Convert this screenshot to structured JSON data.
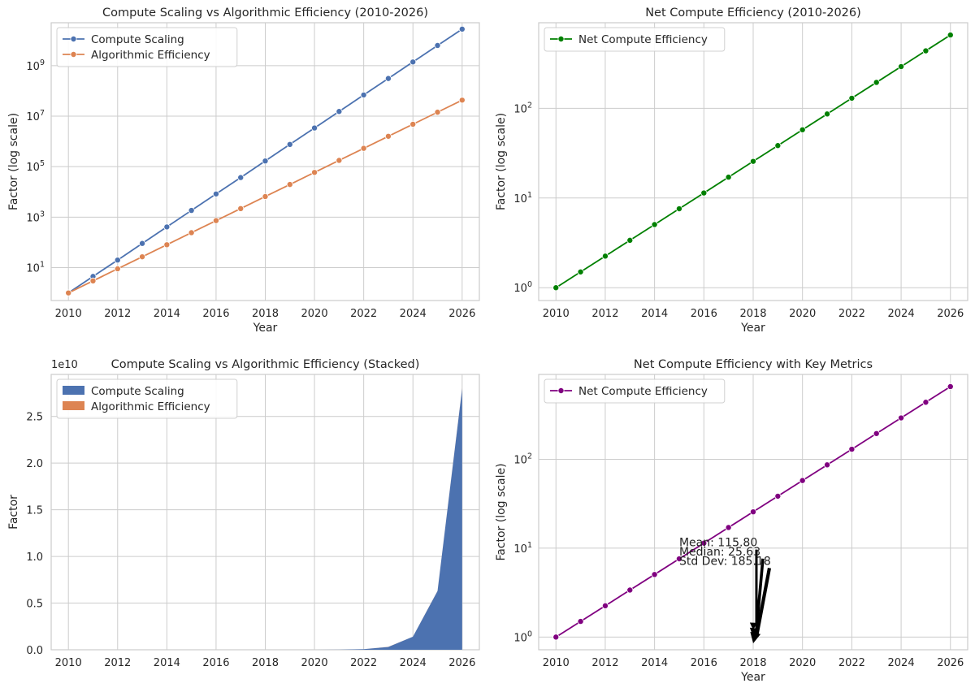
{
  "chart_data": [
    {
      "type": "line",
      "title": "Compute Scaling vs Algorithmic Efficiency (2010-2026)",
      "xlabel": "Year",
      "ylabel": "Factor (log scale)",
      "yscale": "log",
      "xlim": [
        2009.3,
        2026.7
      ],
      "ylim": [
        0.5,
        50000000000
      ],
      "grid": true,
      "legend_position": "top-left",
      "xticks": [
        "2010",
        "2012",
        "2014",
        "2016",
        "2018",
        "2020",
        "2022",
        "2024",
        "2026"
      ],
      "yticks": [
        {
          "v": 10,
          "e": "1"
        },
        {
          "v": 1000,
          "e": "3"
        },
        {
          "v": 100000,
          "e": "5"
        },
        {
          "v": 10000000,
          "e": "7"
        },
        {
          "v": 1000000000,
          "e": "9"
        }
      ],
      "x": [
        2010,
        2011,
        2012,
        2013,
        2014,
        2015,
        2016,
        2017,
        2018,
        2019,
        2020,
        2021,
        2022,
        2023,
        2024,
        2025,
        2026
      ],
      "series": [
        {
          "name": "Compute Scaling",
          "color": "#4c72b0",
          "values": [
            1,
            4.5,
            20,
            91,
            410,
            1850,
            8300,
            37000,
            168000,
            760000,
            3400000,
            15300000,
            69000000,
            310000000,
            1400000000,
            6300000000,
            28000000000
          ]
        },
        {
          "name": "Algorithmic Efficiency",
          "color": "#dd8452",
          "values": [
            1,
            3,
            9,
            27,
            81,
            243,
            729,
            2187,
            6561,
            19683,
            59049,
            177147,
            531441,
            1594323,
            4782969,
            14348907,
            43046721
          ]
        }
      ]
    },
    {
      "type": "line",
      "title": "Net Compute Efficiency (2010-2026)",
      "xlabel": "Year",
      "ylabel": "Factor (log scale)",
      "yscale": "log",
      "xlim": [
        2009.3,
        2026.7
      ],
      "ylim": [
        0.72,
        900
      ],
      "grid": true,
      "legend_position": "top-left",
      "xticks": [
        "2010",
        "2012",
        "2014",
        "2016",
        "2018",
        "2020",
        "2022",
        "2024",
        "2026"
      ],
      "yticks": [
        {
          "v": 1,
          "e": "0"
        },
        {
          "v": 10,
          "e": "1"
        },
        {
          "v": 100,
          "e": "2"
        }
      ],
      "x": [
        2010,
        2011,
        2012,
        2013,
        2014,
        2015,
        2016,
        2017,
        2018,
        2019,
        2020,
        2021,
        2022,
        2023,
        2024,
        2025,
        2026
      ],
      "series": [
        {
          "name": "Net Compute Efficiency",
          "color": "#008000",
          "values": [
            1,
            1.5,
            2.25,
            3.38,
            5.06,
            7.59,
            11.39,
            17.09,
            25.63,
            38.44,
            57.67,
            86.5,
            129.75,
            194.62,
            291.93,
            437.89,
            656.84
          ]
        }
      ]
    },
    {
      "type": "area",
      "title": "Compute Scaling vs Algorithmic Efficiency (Stacked)",
      "xlabel": "",
      "ylabel": "Factor",
      "yscale": "linear",
      "offset_label": "1e10",
      "xlim": [
        2009.3,
        2026.7
      ],
      "ylim": [
        0,
        2.95
      ],
      "grid": true,
      "legend_position": "top-left",
      "xticks": [
        "2010",
        "2012",
        "2014",
        "2016",
        "2018",
        "2020",
        "2022",
        "2024",
        "2026"
      ],
      "yticks": [
        {
          "v": 0,
          "t": "0.0"
        },
        {
          "v": 0.5,
          "t": "0.5"
        },
        {
          "v": 1.0,
          "t": "1.0"
        },
        {
          "v": 1.5,
          "t": "1.5"
        },
        {
          "v": 2.0,
          "t": "2.0"
        },
        {
          "v": 2.5,
          "t": "2.5"
        }
      ],
      "x": [
        2010,
        2011,
        2012,
        2013,
        2014,
        2015,
        2016,
        2017,
        2018,
        2019,
        2020,
        2021,
        2022,
        2023,
        2024,
        2025,
        2026
      ],
      "series": [
        {
          "name": "Compute Scaling",
          "color": "#4c72b0",
          "values": [
            0,
            0,
            0,
            0,
            0,
            0,
            0,
            0,
            0,
            0,
            0.0003,
            0.0015,
            0.007,
            0.031,
            0.14,
            0.63,
            2.8
          ]
        },
        {
          "name": "Algorithmic Efficiency",
          "color": "#dd8452",
          "values": [
            0,
            0,
            0,
            0,
            0,
            0,
            0,
            0,
            0,
            0,
            0,
            0,
            0,
            0.0002,
            0.0005,
            0.0014,
            0.0043
          ]
        }
      ]
    },
    {
      "type": "line",
      "title": "Net Compute Efficiency with Key Metrics",
      "xlabel": "Year",
      "ylabel": "Factor (log scale)",
      "yscale": "log",
      "xlim": [
        2009.3,
        2026.7
      ],
      "ylim": [
        0.72,
        900
      ],
      "grid": true,
      "legend_position": "top-left",
      "xticks": [
        "2010",
        "2012",
        "2014",
        "2016",
        "2018",
        "2020",
        "2022",
        "2024",
        "2026"
      ],
      "yticks": [
        {
          "v": 1,
          "e": "0"
        },
        {
          "v": 10,
          "e": "1"
        },
        {
          "v": 100,
          "e": "2"
        }
      ],
      "x": [
        2010,
        2011,
        2012,
        2013,
        2014,
        2015,
        2016,
        2017,
        2018,
        2019,
        2020,
        2021,
        2022,
        2023,
        2024,
        2025,
        2026
      ],
      "series": [
        {
          "name": "Net Compute Efficiency",
          "color": "#800080",
          "values": [
            1,
            1.5,
            2.25,
            3.38,
            5.06,
            7.59,
            11.39,
            17.09,
            25.63,
            38.44,
            57.67,
            86.5,
            129.75,
            194.62,
            291.93,
            437.89,
            656.84
          ]
        }
      ],
      "annotations": [
        {
          "text": "Mean: 115.80",
          "x": 2015,
          "y": 10.5,
          "arrow_to": [
            2018,
            1.2
          ]
        },
        {
          "text": "Median: 25.63",
          "x": 2015,
          "y": 8.3,
          "arrow_to": [
            2018,
            1.0
          ]
        },
        {
          "text": "Std Dev: 185.18",
          "x": 2015,
          "y": 6.5,
          "arrow_to": [
            2018,
            0.85
          ]
        }
      ]
    }
  ]
}
